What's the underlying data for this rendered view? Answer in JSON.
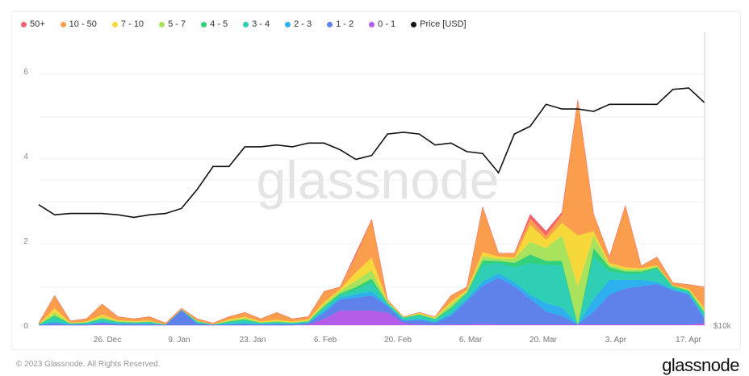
{
  "chart_data": {
    "type": "area",
    "stacked": true,
    "watermark": "glassnode",
    "legend_position": "top-left",
    "legend": [
      "50+",
      "10 - 50",
      "7 - 10",
      "5 - 7",
      "4 - 5",
      "3 - 4",
      "2 - 3",
      "1 - 2",
      "0 - 1",
      "Price [USD]"
    ],
    "x_ticks": [
      "26. Dec",
      "9. Jan",
      "23. Jan",
      "6. Feb",
      "20. Feb",
      "6. Mar",
      "20. Mar",
      "3. Apr",
      "17. Apr"
    ],
    "y_ticks": [
      "0",
      "2",
      "4",
      "6"
    ],
    "ylim": [
      0,
      6.3
    ],
    "right_axis_label": "$10k",
    "right_axis_scale": "log",
    "grid": true,
    "x_range": [
      "13. Dec",
      "20. Apr"
    ],
    "x_step_days": 3,
    "series": [
      {
        "name": "0 - 1",
        "color": "#b45ee8",
        "values": [
          0,
          0,
          0,
          0,
          0.02,
          0,
          0,
          0,
          0,
          0,
          0,
          0,
          0,
          0,
          0,
          0,
          0,
          0.02,
          0.15,
          0.35,
          0.35,
          0.35,
          0.3,
          0.05,
          0.02,
          0.01,
          0.02,
          0.02,
          0.03,
          0.02,
          0.02,
          0.02,
          0.02,
          0.02,
          0.02,
          0.02,
          0.02,
          0.02,
          0.02,
          0.02,
          0.02,
          0.02,
          0.05
        ]
      },
      {
        "name": "1 - 2",
        "color": "#5f82ea",
        "values": [
          0.01,
          0.05,
          0.02,
          0.02,
          0.04,
          0.03,
          0.03,
          0.03,
          0.01,
          0.35,
          0.04,
          0.01,
          0.02,
          0.03,
          0.02,
          0.03,
          0.02,
          0.03,
          0.15,
          0.25,
          0.3,
          0.35,
          0.15,
          0.05,
          0.1,
          0.05,
          0.2,
          0.55,
          0.9,
          1.1,
          0.9,
          0.6,
          0.3,
          0.2,
          0,
          0.3,
          0.7,
          0.85,
          0.9,
          0.95,
          0.8,
          0.7,
          0.1
        ]
      },
      {
        "name": "2 - 3",
        "color": "#2fb0ee",
        "values": [
          0,
          0.03,
          0,
          0.01,
          0.02,
          0.01,
          0.01,
          0.01,
          0,
          0.01,
          0.01,
          0,
          0.02,
          0.02,
          0.01,
          0.01,
          0.01,
          0.01,
          0.05,
          0.05,
          0.08,
          0.1,
          0.03,
          0.02,
          0.03,
          0.02,
          0.05,
          0.05,
          0.1,
          0.1,
          0.1,
          0.1,
          0.2,
          0.2,
          0,
          0.3,
          0.35,
          0.2,
          0.15,
          0.05,
          0.03,
          0.03,
          0.05
        ]
      },
      {
        "name": "3 - 4",
        "color": "#2ecfb5",
        "values": [
          0.01,
          0.1,
          0.02,
          0.02,
          0.05,
          0.03,
          0.02,
          0.03,
          0.01,
          0.01,
          0.03,
          0.01,
          0.03,
          0.07,
          0.02,
          0.03,
          0.02,
          0.02,
          0.06,
          0.06,
          0.1,
          0.2,
          0.03,
          0.05,
          0.08,
          0.05,
          0.1,
          0.12,
          0.4,
          0.25,
          0.35,
          0.75,
          0.9,
          1.0,
          0,
          1.0,
          0.2,
          0.15,
          0.15,
          0.3,
          0.05,
          0.05,
          0.05
        ]
      },
      {
        "name": "4 - 5",
        "color": "#33d17a",
        "values": [
          0,
          0.05,
          0,
          0.01,
          0.03,
          0.01,
          0.01,
          0.01,
          0,
          0,
          0.01,
          0,
          0.02,
          0.02,
          0.01,
          0.01,
          0.01,
          0.01,
          0.04,
          0.04,
          0.07,
          0.1,
          0.02,
          0.01,
          0.02,
          0.02,
          0.05,
          0.03,
          0.1,
          0.05,
          0.1,
          0.2,
          0.1,
          0.1,
          0,
          0.2,
          0.1,
          0.05,
          0.05,
          0.05,
          0.02,
          0.02,
          0.05
        ]
      },
      {
        "name": "5 - 7",
        "color": "#a9e35e",
        "values": [
          0,
          0.07,
          0.01,
          0.01,
          0.04,
          0.02,
          0.01,
          0.01,
          0,
          0,
          0.01,
          0,
          0.02,
          0.03,
          0.01,
          0.02,
          0.01,
          0.02,
          0.05,
          0.06,
          0.15,
          0.2,
          0.02,
          0.01,
          0.02,
          0.02,
          0.08,
          0.03,
          0.1,
          0.05,
          0.1,
          0.3,
          0.3,
          0.6,
          0.9,
          0.3,
          0.05,
          0.05,
          0.05,
          0.02,
          0.01,
          0.02,
          0.05
        ]
      },
      {
        "name": "7 - 10",
        "color": "#f6d83a",
        "values": [
          0,
          0.1,
          0.01,
          0.02,
          0.05,
          0.02,
          0.02,
          0.02,
          0,
          0,
          0.01,
          0,
          0.03,
          0.03,
          0.02,
          0.03,
          0.02,
          0.03,
          0.05,
          0.04,
          0.2,
          0.3,
          0.02,
          0.01,
          0.02,
          0.02,
          0.05,
          0.03,
          0.1,
          0.05,
          0.03,
          0.4,
          0.2,
          0.3,
          1.2,
          0.1,
          0.05,
          0.05,
          0.03,
          0.02,
          0.01,
          0.02,
          0.05
        ]
      },
      {
        "name": "10 - 50",
        "color": "#fa9d4c",
        "values": [
          0.03,
          0.3,
          0.04,
          0.06,
          0.25,
          0.08,
          0.05,
          0.09,
          0.03,
          0.03,
          0.04,
          0.03,
          0.06,
          0.1,
          0.06,
          0.17,
          0.06,
          0.06,
          0.25,
          0.05,
          0.4,
          0.9,
          0.03,
          0,
          0.01,
          0.01,
          0.15,
          0.07,
          1.05,
          0.08,
          0.1,
          0.15,
          0.1,
          0.2,
          3.2,
          0.4,
          0.15,
          1.45,
          0.05,
          0.2,
          0.06,
          0.1,
          0.5
        ]
      },
      {
        "name": "50+",
        "color": "#f2636f",
        "values": [
          0,
          0,
          0,
          0,
          0,
          0,
          0,
          0,
          0,
          0,
          0,
          0,
          0,
          0,
          0,
          0,
          0,
          0,
          0,
          0,
          0.05,
          0,
          0,
          0,
          0,
          0,
          0,
          0,
          0.02,
          0,
          0,
          0.1,
          0.1,
          0.05,
          0,
          0,
          0,
          0,
          0,
          0,
          0,
          0,
          0
        ]
      }
    ],
    "price": {
      "name": "Price [USD]",
      "color": "#111111",
      "values": [
        17500,
        16700,
        16800,
        16800,
        16800,
        16700,
        16500,
        16700,
        16800,
        17200,
        18800,
        20900,
        20900,
        22900,
        22900,
        23100,
        22900,
        23300,
        23300,
        22600,
        21600,
        22000,
        24300,
        24500,
        24300,
        23100,
        23300,
        22400,
        22200,
        20300,
        24300,
        25200,
        27900,
        27300,
        27300,
        27000,
        27900,
        27900,
        27900,
        27900,
        29900,
        30100,
        28100
      ]
    }
  },
  "footer": {
    "copyright": "© 2023 Glassnode. All Rights Reserved.",
    "logo": "glassnode"
  }
}
